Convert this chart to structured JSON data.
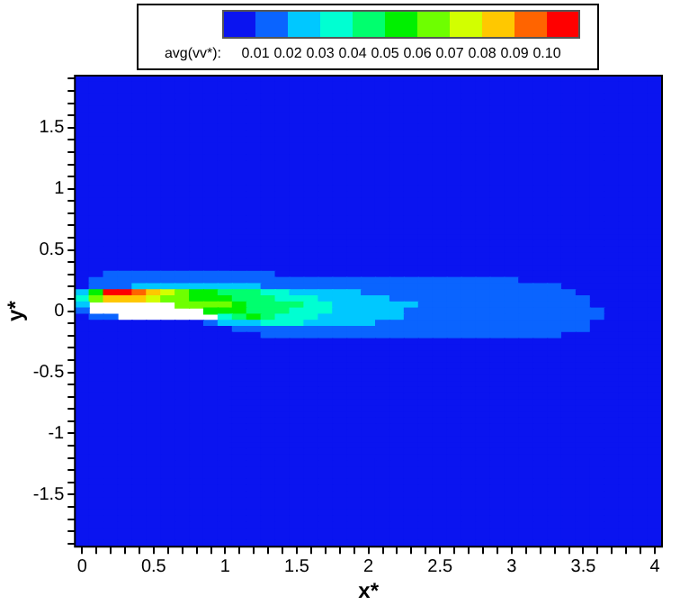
{
  "chart_data": {
    "type": "heatmap",
    "xlabel": "x*",
    "ylabel": "y*",
    "clabel": "avg(vv*):",
    "categories": [
      "0",
      null,
      null,
      null,
      null,
      "0.5",
      null,
      null,
      null,
      null,
      "1",
      null,
      null,
      null,
      null,
      "1.5",
      null,
      null,
      null,
      null,
      "2",
      null,
      null,
      null,
      null,
      "2.5",
      null,
      null,
      null,
      null,
      "3",
      null,
      null,
      null,
      null,
      "3.5",
      null,
      null,
      null,
      null,
      "4"
    ],
    "y_categories": [
      null,
      null,
      null,
      null,
      null,
      null,
      null,
      null,
      "1.5",
      null,
      null,
      null,
      null,
      null,
      null,
      null,
      null,
      null,
      "1",
      null,
      null,
      null,
      null,
      null,
      null,
      null,
      null,
      null,
      "0.5",
      null,
      null,
      null,
      null,
      null,
      null,
      null,
      null,
      null,
      "0",
      null,
      null,
      null,
      null,
      null,
      null,
      null,
      null,
      null,
      "-0.5",
      null,
      null,
      null,
      null,
      null,
      null,
      null,
      null,
      null,
      "-1",
      null,
      null,
      null,
      null,
      null,
      null,
      null,
      null,
      null,
      "-1.5",
      null,
      null,
      null,
      null,
      null,
      null,
      null,
      null
    ],
    "clim": [
      0,
      0.11
    ],
    "cticks": [
      0.01,
      0.02,
      0.03,
      0.04,
      0.05,
      0.06,
      0.07,
      0.08,
      0.09,
      {
        "value": 0.1,
        "label": "0.10"
      }
    ],
    "cells": [
      [
        0,
        0,
        0,
        0,
        0,
        0,
        0,
        0,
        0,
        0,
        0,
        0,
        0,
        0,
        0,
        0,
        0,
        0,
        0,
        0,
        0,
        0,
        0,
        0,
        0,
        0,
        0,
        0,
        0,
        0,
        0,
        0,
        0,
        0,
        0,
        0,
        0,
        0,
        0,
        0,
        0
      ],
      [
        0,
        0,
        0,
        0,
        0,
        0,
        0,
        0,
        0,
        0,
        0,
        0,
        0,
        0,
        0,
        0,
        0,
        0,
        0,
        0,
        0,
        0,
        0,
        0,
        0,
        0,
        0,
        0,
        0,
        0,
        0,
        0,
        0,
        0,
        0,
        0,
        0,
        0,
        0,
        0,
        0
      ],
      [
        0,
        0,
        0,
        0,
        0,
        0,
        0,
        0,
        0,
        0,
        0,
        0,
        0,
        0,
        0,
        0,
        0,
        0,
        0,
        0,
        0,
        0,
        0,
        0,
        0,
        0,
        0,
        0,
        0,
        0,
        0,
        0,
        0,
        0,
        0,
        0,
        0,
        0,
        0,
        0,
        0
      ],
      [
        0,
        0,
        0,
        0,
        0,
        0,
        0,
        0,
        0,
        0,
        0,
        0,
        0,
        0,
        0,
        0,
        0,
        0,
        0,
        0,
        0,
        0,
        0,
        0,
        0,
        0,
        0,
        0,
        0,
        0,
        0,
        0,
        0,
        0,
        0,
        0,
        0,
        0,
        0,
        0,
        0
      ],
      [
        0,
        0,
        0,
        0,
        0,
        0,
        0,
        0,
        0,
        0,
        0,
        0,
        0,
        0,
        0,
        0,
        0,
        0,
        0,
        0,
        0,
        0,
        0,
        0,
        0,
        0,
        0,
        0,
        0,
        0,
        0,
        0,
        0,
        0,
        0,
        0,
        0,
        0,
        0,
        0,
        0
      ],
      [
        0,
        0,
        0,
        0,
        0,
        0,
        0,
        0,
        0,
        0,
        0,
        0,
        0,
        0,
        0,
        0,
        0,
        0,
        0,
        0,
        0,
        0,
        0,
        0,
        0,
        0,
        0,
        0,
        0,
        0,
        0,
        0,
        0,
        0,
        0,
        0,
        0,
        0,
        0,
        0,
        0
      ],
      [
        0,
        0,
        0,
        0,
        0,
        0,
        0,
        0,
        0,
        0,
        0,
        0,
        0,
        0,
        0,
        0,
        0,
        0,
        0,
        0,
        0,
        0,
        0,
        0,
        0,
        0,
        0,
        0,
        0,
        0,
        0,
        0,
        0,
        0,
        0,
        0,
        0,
        0,
        0,
        0,
        0
      ],
      [
        0,
        0,
        0,
        0,
        0,
        0,
        0,
        0,
        0,
        0,
        0,
        0,
        0,
        0,
        0,
        0,
        0,
        0,
        0,
        0,
        0,
        0,
        0,
        0,
        0,
        0,
        0,
        0,
        0,
        0,
        0,
        0,
        0,
        0,
        0,
        0,
        0,
        0,
        0,
        0,
        0
      ],
      [
        0,
        0,
        0,
        0,
        0,
        0,
        0,
        0,
        0,
        0,
        0,
        0,
        0,
        0,
        0,
        0,
        0,
        0,
        0,
        0,
        0,
        0,
        0,
        0,
        0,
        0,
        0,
        0,
        0,
        0,
        0,
        0,
        0,
        0,
        0,
        0,
        0,
        0,
        0,
        0,
        0
      ],
      [
        0,
        0,
        0,
        0,
        0,
        0,
        0,
        0,
        0,
        0,
        0,
        0,
        0,
        0,
        0,
        0,
        0,
        0,
        0,
        0,
        0,
        0,
        0,
        0,
        0,
        0,
        0,
        0,
        0,
        0,
        0,
        0,
        0,
        0,
        0,
        0,
        0,
        0,
        0,
        0,
        0
      ],
      [
        0,
        0,
        0,
        0,
        0,
        0,
        0,
        0,
        0,
        0,
        0,
        0,
        0,
        0,
        0,
        0,
        0,
        0,
        0,
        0,
        0,
        0,
        0,
        0,
        0,
        0,
        0,
        0,
        0,
        0,
        0,
        0,
        0,
        0,
        0,
        0,
        0,
        0,
        0,
        0,
        0
      ],
      [
        0,
        0,
        0,
        0,
        0,
        0,
        0,
        0,
        0,
        0,
        0,
        0,
        0,
        0,
        0,
        0,
        0,
        0,
        0,
        0,
        0,
        0,
        0,
        0,
        0,
        0,
        0,
        0,
        0,
        0,
        0,
        0,
        0,
        0,
        0,
        0,
        0,
        0,
        0,
        0,
        0
      ],
      [
        0,
        0,
        0,
        0,
        0,
        0,
        0,
        0,
        0,
        0,
        0,
        0,
        0,
        0,
        0,
        0,
        0,
        0,
        0,
        0,
        0,
        0,
        0,
        0,
        0,
        0,
        0,
        0,
        0,
        0,
        0,
        0,
        0,
        0,
        0,
        0,
        0,
        0,
        0,
        0,
        0
      ],
      [
        0,
        0,
        0,
        0,
        0,
        0,
        0,
        0,
        0,
        0,
        0,
        0,
        0,
        0,
        0,
        0,
        0,
        0,
        0,
        0,
        0,
        0,
        0,
        0,
        0,
        0,
        0,
        0,
        0,
        0,
        0,
        0,
        0,
        0,
        0,
        0,
        0,
        0,
        0,
        0,
        0
      ],
      [
        0,
        0,
        0,
        0,
        0,
        0,
        0,
        0,
        0,
        0,
        0,
        0,
        0,
        0,
        0,
        0,
        0,
        0,
        0,
        0,
        0,
        0,
        0,
        0,
        0,
        0,
        0,
        0,
        0,
        0,
        0,
        0,
        0,
        0,
        0,
        0,
        0,
        0,
        0,
        0,
        0
      ],
      [
        0,
        0,
        0,
        0,
        0,
        0,
        0,
        0,
        0,
        0,
        0,
        0,
        0,
        0,
        0,
        0,
        0,
        0,
        0,
        0,
        0,
        0,
        0,
        0,
        0,
        0,
        0,
        0,
        0,
        0,
        0,
        0,
        0,
        0,
        0,
        0,
        0,
        0,
        0,
        0,
        0
      ],
      [
        0,
        0,
        0,
        0,
        0,
        0,
        0,
        0,
        0,
        0,
        0,
        0,
        0,
        0,
        0,
        0,
        0,
        0,
        0,
        0,
        0,
        0,
        0,
        0,
        0,
        0,
        0,
        0,
        0,
        0,
        0,
        0,
        0,
        0,
        0,
        0,
        0,
        0,
        0,
        0,
        0
      ],
      [
        0,
        0,
        0,
        0,
        0,
        0,
        0,
        0,
        0,
        0,
        0,
        0,
        0,
        0,
        0,
        0,
        0,
        0,
        0,
        0,
        0,
        0,
        0,
        0,
        0,
        0,
        0,
        0,
        0,
        0,
        0,
        0,
        0,
        0,
        0,
        0,
        0,
        0,
        0,
        0,
        0
      ],
      [
        0,
        0,
        0,
        0,
        0,
        0,
        0,
        0,
        0,
        0,
        0,
        0,
        0,
        0,
        0,
        0,
        0,
        0,
        0,
        0,
        0,
        0,
        0,
        0,
        0,
        0,
        0,
        0,
        0,
        0,
        0,
        0,
        0,
        0,
        0,
        0,
        0,
        0,
        0,
        0,
        0
      ],
      [
        0,
        0,
        0,
        0,
        0,
        0,
        0,
        0,
        0,
        0,
        0,
        0,
        0,
        0,
        0,
        0,
        0,
        0,
        0,
        0,
        0,
        0,
        0,
        0,
        0,
        0,
        0,
        0,
        0,
        0,
        0,
        0,
        0,
        0,
        0,
        0,
        0,
        0,
        0,
        0,
        0
      ],
      [
        0,
        0,
        0,
        0,
        0,
        0,
        0,
        0,
        0,
        0,
        0,
        0,
        0,
        0,
        0,
        0,
        0,
        0,
        0,
        0,
        0,
        0,
        0,
        0,
        0,
        0,
        0,
        0,
        0,
        0,
        0,
        0,
        0,
        0,
        0,
        0,
        0,
        0,
        0,
        0,
        0
      ],
      [
        0,
        0,
        0,
        0,
        0,
        0,
        0,
        0,
        0,
        0,
        0,
        0,
        0,
        0,
        0,
        0,
        0,
        0,
        0,
        0,
        0,
        0,
        0,
        0,
        0,
        0,
        0,
        0,
        0,
        0,
        0,
        0,
        0,
        0,
        0,
        0,
        0,
        0,
        0,
        0,
        0
      ],
      [
        0,
        0,
        0,
        0,
        0,
        0,
        0,
        0,
        0,
        0,
        0,
        0,
        0,
        0,
        0,
        0,
        0,
        0,
        0,
        0,
        0,
        0,
        0,
        0,
        0,
        0,
        0,
        0,
        0,
        0,
        0,
        0,
        0,
        0,
        0,
        0,
        0,
        0,
        0,
        0,
        0
      ],
      [
        0,
        0,
        0,
        0,
        0,
        0,
        0,
        0,
        0,
        0,
        0,
        0,
        0,
        0,
        0,
        0,
        0,
        0,
        0,
        0,
        0,
        0,
        0,
        0,
        0,
        0,
        0,
        0,
        0,
        0,
        0,
        0,
        0,
        0,
        0,
        0,
        0,
        0,
        0,
        0,
        0
      ],
      [
        0,
        0,
        0,
        0,
        0,
        0,
        0,
        0,
        0,
        0,
        0,
        0,
        0,
        0,
        0,
        0,
        0,
        0,
        0,
        0,
        0,
        0,
        0,
        0,
        0,
        0,
        0,
        0,
        0,
        0,
        0,
        0,
        0,
        0,
        0,
        0,
        0,
        0,
        0,
        0,
        0
      ],
      [
        0,
        0,
        0,
        0,
        0,
        0,
        0,
        0,
        0,
        0,
        0,
        0,
        0,
        0,
        0,
        0,
        0,
        0,
        0,
        0,
        0,
        0,
        0,
        0,
        0,
        0,
        0,
        0,
        0,
        0,
        0,
        0,
        0,
        0,
        0,
        0,
        0,
        0,
        0,
        0,
        0
      ],
      [
        0,
        0,
        0,
        0,
        0,
        0,
        0,
        0,
        0,
        0,
        0,
        0,
        0,
        0,
        0,
        0,
        0,
        0,
        0,
        0,
        0,
        0,
        0,
        0,
        0,
        0,
        0,
        0,
        0,
        0,
        0,
        0,
        0,
        0,
        0,
        0,
        0,
        0,
        0,
        0,
        0
      ],
      [
        0,
        0,
        0,
        0,
        0,
        0,
        0,
        0,
        0,
        0,
        0,
        0,
        0,
        0,
        0,
        0,
        0,
        0,
        0,
        0,
        0,
        0,
        0,
        0,
        0,
        0,
        0,
        0,
        0,
        0,
        0,
        0,
        0,
        0,
        0,
        0,
        0,
        0,
        0,
        0,
        0
      ],
      [
        0,
        0,
        0,
        0,
        0,
        0,
        0,
        0,
        0,
        0,
        0,
        0,
        0,
        0,
        0,
        0,
        0,
        0,
        0,
        0,
        0,
        0,
        0,
        0,
        0,
        0,
        0,
        0,
        0,
        0,
        0,
        0,
        0,
        0,
        0,
        0,
        0,
        0,
        0,
        0,
        0
      ],
      [
        0,
        0,
        0,
        0,
        0,
        0,
        0,
        0,
        0,
        0,
        0,
        0,
        0,
        0,
        0,
        0,
        0,
        0,
        0,
        0,
        0,
        0,
        0,
        0,
        0,
        0,
        0,
        0,
        0,
        0,
        0,
        0,
        0,
        0,
        0,
        0,
        0,
        0,
        0,
        0,
        0
      ],
      [
        0,
        0,
        0,
        0,
        0,
        0,
        0,
        0,
        0,
        0,
        0,
        0,
        0,
        0,
        0,
        0,
        0,
        0,
        0,
        0,
        0,
        0,
        0,
        0,
        0,
        0,
        0,
        0,
        0,
        0,
        0,
        0,
        0,
        0,
        0,
        0,
        0,
        0,
        0,
        0,
        0
      ],
      [
        0,
        0,
        0,
        0,
        0,
        0,
        0,
        0,
        0,
        0,
        0,
        0,
        0,
        0,
        0,
        0,
        0,
        0,
        0,
        0,
        0,
        0,
        0,
        0,
        0,
        0,
        0,
        0,
        0,
        0,
        0,
        0,
        0,
        0,
        0,
        0,
        0,
        0,
        0,
        0,
        0
      ],
      [
        0,
        0,
        0.015,
        0.015,
        0.015,
        0.015,
        0.015,
        0.015,
        0.015,
        0.015,
        0.015,
        0.015,
        0.015,
        0.015,
        0,
        0,
        0,
        0,
        0,
        0,
        0,
        0,
        0,
        0,
        0,
        0,
        0,
        0,
        0,
        0,
        0,
        0,
        0,
        0,
        0,
        0,
        0,
        0,
        0,
        0,
        0
      ],
      [
        0,
        0.015,
        0.015,
        0.015,
        0.015,
        0.015,
        0.015,
        0.015,
        0.015,
        0.015,
        0.015,
        0.015,
        0.015,
        0.015,
        0.015,
        0.015,
        0.015,
        0.015,
        0.015,
        0.015,
        0.015,
        0.015,
        0.015,
        0.015,
        0.015,
        0.015,
        0.015,
        0.015,
        0.015,
        0.015,
        0.015,
        0,
        0,
        0,
        0,
        0,
        0,
        0,
        0,
        0,
        0
      ],
      [
        0,
        0.015,
        0.015,
        0.015,
        0.025,
        0.025,
        0.025,
        0.025,
        0.025,
        0.025,
        0.025,
        0.025,
        0.025,
        0.015,
        0.015,
        0.015,
        0.015,
        0.015,
        0.015,
        0.015,
        0.015,
        0.015,
        0.015,
        0.015,
        0.015,
        0.015,
        0.015,
        0.015,
        0.015,
        0.015,
        0.015,
        0.015,
        0.015,
        0.015,
        0,
        0,
        0,
        0,
        0,
        0,
        0
      ],
      [
        0.025,
        0.055,
        0.105,
        0.105,
        0.095,
        0.085,
        0.075,
        0.065,
        0.055,
        0.055,
        0.045,
        0.045,
        0.045,
        0.035,
        0.035,
        0.025,
        0.025,
        0.025,
        0.025,
        0.025,
        0.015,
        0.015,
        0.015,
        0.015,
        0.015,
        0.015,
        0.015,
        0.015,
        0.015,
        0.015,
        0.015,
        0.015,
        0.015,
        0.015,
        0.015,
        0,
        0,
        0,
        0,
        0,
        0
      ],
      [
        0.035,
        0.065,
        0.085,
        0.085,
        0.085,
        0.075,
        0.065,
        0.065,
        0.055,
        0.055,
        0.055,
        0.045,
        0.045,
        0.045,
        0.035,
        0.035,
        0.035,
        0.025,
        0.025,
        0.025,
        0.025,
        0.025,
        0.015,
        0.015,
        0.015,
        0.015,
        0.015,
        0.015,
        0.015,
        0.015,
        0.015,
        0.015,
        0.015,
        0.015,
        0.015,
        0.015,
        0,
        0,
        0,
        0,
        0
      ],
      [
        0.025,
        null,
        null,
        null,
        null,
        null,
        null,
        0.065,
        0.065,
        0.065,
        0.065,
        0.055,
        0.045,
        0.045,
        0.045,
        0.045,
        0.035,
        0.035,
        0.025,
        0.025,
        0.025,
        0.025,
        0.025,
        0.025,
        0.015,
        0.015,
        0.015,
        0.015,
        0.015,
        0.015,
        0.015,
        0.015,
        0.015,
        0.015,
        0.015,
        0.015,
        0,
        0,
        0,
        0,
        0
      ],
      [
        0.015,
        null,
        null,
        null,
        null,
        null,
        null,
        null,
        null,
        0.055,
        0.055,
        0.055,
        0.045,
        0.045,
        0.045,
        0.035,
        0.035,
        0.035,
        0.025,
        0.025,
        0.025,
        0.025,
        0.025,
        0.015,
        0.015,
        0.015,
        0.015,
        0.015,
        0.015,
        0.015,
        0.015,
        0.015,
        0.015,
        0.015,
        0.015,
        0.015,
        0.015,
        0,
        0,
        0,
        0
      ],
      [
        0,
        0.015,
        0.015,
        null,
        null,
        null,
        null,
        null,
        null,
        null,
        0.035,
        0.045,
        0.055,
        0.045,
        0.035,
        0.035,
        0.035,
        0.025,
        0.025,
        0.025,
        0.025,
        0.025,
        0.025,
        0.015,
        0.015,
        0.015,
        0.015,
        0.015,
        0.015,
        0.015,
        0.015,
        0.015,
        0.015,
        0.015,
        0.015,
        0.015,
        0.015,
        0,
        0,
        0,
        0
      ],
      [
        0,
        0,
        0,
        0,
        0,
        0,
        0,
        0,
        0,
        0.015,
        0.025,
        0.025,
        0.025,
        0.035,
        0.035,
        0.035,
        0.025,
        0.025,
        0.025,
        0.025,
        0.025,
        0.015,
        0.015,
        0.015,
        0.015,
        0.015,
        0.015,
        0.015,
        0.015,
        0.015,
        0.015,
        0.015,
        0.015,
        0.015,
        0.015,
        0.015,
        0,
        0,
        0,
        0,
        0
      ],
      [
        0,
        0,
        0,
        0,
        0,
        0,
        0,
        0,
        0,
        0,
        0,
        0.015,
        0.015,
        0.015,
        0.015,
        0.015,
        0.015,
        0.015,
        0.015,
        0.015,
        0.015,
        0.015,
        0.015,
        0.015,
        0.015,
        0.015,
        0.015,
        0.015,
        0.015,
        0.015,
        0.015,
        0.015,
        0.015,
        0.015,
        0.015,
        0.015,
        0,
        0,
        0,
        0,
        0
      ],
      [
        0,
        0,
        0,
        0,
        0,
        0,
        0,
        0,
        0,
        0,
        0,
        0,
        0,
        0.015,
        0.015,
        0.015,
        0.015,
        0.015,
        0.015,
        0.015,
        0.015,
        0.015,
        0.015,
        0.015,
        0.015,
        0.015,
        0.015,
        0.015,
        0.015,
        0.015,
        0.015,
        0.015,
        0.015,
        0.015,
        0,
        0,
        0,
        0,
        0,
        0,
        0
      ],
      [
        0,
        0,
        0,
        0,
        0,
        0,
        0,
        0,
        0,
        0,
        0,
        0,
        0,
        0,
        0,
        0,
        0,
        0,
        0,
        0,
        0,
        0,
        0,
        0,
        0,
        0,
        0,
        0,
        0,
        0,
        0,
        0,
        0,
        0,
        0,
        0,
        0,
        0,
        0,
        0,
        0
      ],
      [
        0,
        0,
        0,
        0,
        0,
        0,
        0,
        0,
        0,
        0,
        0,
        0,
        0,
        0,
        0,
        0,
        0,
        0,
        0,
        0,
        0,
        0,
        0,
        0,
        0,
        0,
        0,
        0,
        0,
        0,
        0,
        0,
        0,
        0,
        0,
        0,
        0,
        0,
        0,
        0,
        0
      ],
      [
        0,
        0,
        0,
        0,
        0,
        0,
        0,
        0,
        0,
        0,
        0,
        0,
        0,
        0,
        0,
        0,
        0,
        0,
        0,
        0,
        0,
        0,
        0,
        0,
        0,
        0,
        0,
        0,
        0,
        0,
        0,
        0,
        0,
        0,
        0,
        0,
        0,
        0,
        0,
        0,
        0
      ],
      [
        0,
        0,
        0,
        0,
        0,
        0,
        0,
        0,
        0,
        0,
        0,
        0,
        0,
        0,
        0,
        0,
        0,
        0,
        0,
        0,
        0,
        0,
        0,
        0,
        0,
        0,
        0,
        0,
        0,
        0,
        0,
        0,
        0,
        0,
        0,
        0,
        0,
        0,
        0,
        0,
        0
      ],
      [
        0,
        0,
        0,
        0,
        0,
        0,
        0,
        0,
        0,
        0,
        0,
        0,
        0,
        0,
        0,
        0,
        0,
        0,
        0,
        0,
        0,
        0,
        0,
        0,
        0,
        0,
        0,
        0,
        0,
        0,
        0,
        0,
        0,
        0,
        0,
        0,
        0,
        0,
        0,
        0,
        0
      ],
      [
        0,
        0,
        0,
        0,
        0,
        0,
        0,
        0,
        0,
        0,
        0,
        0,
        0,
        0,
        0,
        0,
        0,
        0,
        0,
        0,
        0,
        0,
        0,
        0,
        0,
        0,
        0,
        0,
        0,
        0,
        0,
        0,
        0,
        0,
        0,
        0,
        0,
        0,
        0,
        0,
        0
      ],
      [
        0,
        0,
        0,
        0,
        0,
        0,
        0,
        0,
        0,
        0,
        0,
        0,
        0,
        0,
        0,
        0,
        0,
        0,
        0,
        0,
        0,
        0,
        0,
        0,
        0,
        0,
        0,
        0,
        0,
        0,
        0,
        0,
        0,
        0,
        0,
        0,
        0,
        0,
        0,
        0,
        0
      ],
      [
        0,
        0,
        0,
        0,
        0,
        0,
        0,
        0,
        0,
        0,
        0,
        0,
        0,
        0,
        0,
        0,
        0,
        0,
        0,
        0,
        0,
        0,
        0,
        0,
        0,
        0,
        0,
        0,
        0,
        0,
        0,
        0,
        0,
        0,
        0,
        0,
        0,
        0,
        0,
        0,
        0
      ],
      [
        0,
        0,
        0,
        0,
        0,
        0,
        0,
        0,
        0,
        0,
        0,
        0,
        0,
        0,
        0,
        0,
        0,
        0,
        0,
        0,
        0,
        0,
        0,
        0,
        0,
        0,
        0,
        0,
        0,
        0,
        0,
        0,
        0,
        0,
        0,
        0,
        0,
        0,
        0,
        0,
        0
      ],
      [
        0,
        0,
        0,
        0,
        0,
        0,
        0,
        0,
        0,
        0,
        0,
        0,
        0,
        0,
        0,
        0,
        0,
        0,
        0,
        0,
        0,
        0,
        0,
        0,
        0,
        0,
        0,
        0,
        0,
        0,
        0,
        0,
        0,
        0,
        0,
        0,
        0,
        0,
        0,
        0,
        0
      ],
      [
        0,
        0,
        0,
        0,
        0,
        0,
        0,
        0,
        0,
        0,
        0,
        0,
        0,
        0,
        0,
        0,
        0,
        0,
        0,
        0,
        0,
        0,
        0,
        0,
        0,
        0,
        0,
        0,
        0,
        0,
        0,
        0,
        0,
        0,
        0,
        0,
        0,
        0,
        0,
        0,
        0
      ],
      [
        0,
        0,
        0,
        0,
        0,
        0,
        0,
        0,
        0,
        0,
        0,
        0,
        0,
        0,
        0,
        0,
        0,
        0,
        0,
        0,
        0,
        0,
        0,
        0,
        0,
        0,
        0,
        0,
        0,
        0,
        0,
        0,
        0,
        0,
        0,
        0,
        0,
        0,
        0,
        0,
        0
      ],
      [
        0,
        0,
        0,
        0,
        0,
        0,
        0,
        0,
        0,
        0,
        0,
        0,
        0,
        0,
        0,
        0,
        0,
        0,
        0,
        0,
        0,
        0,
        0,
        0,
        0,
        0,
        0,
        0,
        0,
        0,
        0,
        0,
        0,
        0,
        0,
        0,
        0,
        0,
        0,
        0,
        0
      ],
      [
        0,
        0,
        0,
        0,
        0,
        0,
        0,
        0,
        0,
        0,
        0,
        0,
        0,
        0,
        0,
        0,
        0,
        0,
        0,
        0,
        0,
        0,
        0,
        0,
        0,
        0,
        0,
        0,
        0,
        0,
        0,
        0,
        0,
        0,
        0,
        0,
        0,
        0,
        0,
        0,
        0
      ],
      [
        0,
        0,
        0,
        0,
        0,
        0,
        0,
        0,
        0,
        0,
        0,
        0,
        0,
        0,
        0,
        0,
        0,
        0,
        0,
        0,
        0,
        0,
        0,
        0,
        0,
        0,
        0,
        0,
        0,
        0,
        0,
        0,
        0,
        0,
        0,
        0,
        0,
        0,
        0,
        0,
        0
      ],
      [
        0,
        0,
        0,
        0,
        0,
        0,
        0,
        0,
        0,
        0,
        0,
        0,
        0,
        0,
        0,
        0,
        0,
        0,
        0,
        0,
        0,
        0,
        0,
        0,
        0,
        0,
        0,
        0,
        0,
        0,
        0,
        0,
        0,
        0,
        0,
        0,
        0,
        0,
        0,
        0,
        0
      ],
      [
        0,
        0,
        0,
        0,
        0,
        0,
        0,
        0,
        0,
        0,
        0,
        0,
        0,
        0,
        0,
        0,
        0,
        0,
        0,
        0,
        0,
        0,
        0,
        0,
        0,
        0,
        0,
        0,
        0,
        0,
        0,
        0,
        0,
        0,
        0,
        0,
        0,
        0,
        0,
        0,
        0
      ],
      [
        0,
        0,
        0,
        0,
        0,
        0,
        0,
        0,
        0,
        0,
        0,
        0,
        0,
        0,
        0,
        0,
        0,
        0,
        0,
        0,
        0,
        0,
        0,
        0,
        0,
        0,
        0,
        0,
        0,
        0,
        0,
        0,
        0,
        0,
        0,
        0,
        0,
        0,
        0,
        0,
        0
      ],
      [
        0,
        0,
        0,
        0,
        0,
        0,
        0,
        0,
        0,
        0,
        0,
        0,
        0,
        0,
        0,
        0,
        0,
        0,
        0,
        0,
        0,
        0,
        0,
        0,
        0,
        0,
        0,
        0,
        0,
        0,
        0,
        0,
        0,
        0,
        0,
        0,
        0,
        0,
        0,
        0,
        0
      ],
      [
        0,
        0,
        0,
        0,
        0,
        0,
        0,
        0,
        0,
        0,
        0,
        0,
        0,
        0,
        0,
        0,
        0,
        0,
        0,
        0,
        0,
        0,
        0,
        0,
        0,
        0,
        0,
        0,
        0,
        0,
        0,
        0,
        0,
        0,
        0,
        0,
        0,
        0,
        0,
        0,
        0
      ],
      [
        0,
        0,
        0,
        0,
        0,
        0,
        0,
        0,
        0,
        0,
        0,
        0,
        0,
        0,
        0,
        0,
        0,
        0,
        0,
        0,
        0,
        0,
        0,
        0,
        0,
        0,
        0,
        0,
        0,
        0,
        0,
        0,
        0,
        0,
        0,
        0,
        0,
        0,
        0,
        0,
        0
      ],
      [
        0,
        0,
        0,
        0,
        0,
        0,
        0,
        0,
        0,
        0,
        0,
        0,
        0,
        0,
        0,
        0,
        0,
        0,
        0,
        0,
        0,
        0,
        0,
        0,
        0,
        0,
        0,
        0,
        0,
        0,
        0,
        0,
        0,
        0,
        0,
        0,
        0,
        0,
        0,
        0,
        0
      ],
      [
        0,
        0,
        0,
        0,
        0,
        0,
        0,
        0,
        0,
        0,
        0,
        0,
        0,
        0,
        0,
        0,
        0,
        0,
        0,
        0,
        0,
        0,
        0,
        0,
        0,
        0,
        0,
        0,
        0,
        0,
        0,
        0,
        0,
        0,
        0,
        0,
        0,
        0,
        0,
        0,
        0
      ],
      [
        0,
        0,
        0,
        0,
        0,
        0,
        0,
        0,
        0,
        0,
        0,
        0,
        0,
        0,
        0,
        0,
        0,
        0,
        0,
        0,
        0,
        0,
        0,
        0,
        0,
        0,
        0,
        0,
        0,
        0,
        0,
        0,
        0,
        0,
        0,
        0,
        0,
        0,
        0,
        0,
        0
      ],
      [
        0,
        0,
        0,
        0,
        0,
        0,
        0,
        0,
        0,
        0,
        0,
        0,
        0,
        0,
        0,
        0,
        0,
        0,
        0,
        0,
        0,
        0,
        0,
        0,
        0,
        0,
        0,
        0,
        0,
        0,
        0,
        0,
        0,
        0,
        0,
        0,
        0,
        0,
        0,
        0,
        0
      ],
      [
        0,
        0,
        0,
        0,
        0,
        0,
        0,
        0,
        0,
        0,
        0,
        0,
        0,
        0,
        0,
        0,
        0,
        0,
        0,
        0,
        0,
        0,
        0,
        0,
        0,
        0,
        0,
        0,
        0,
        0,
        0,
        0,
        0,
        0,
        0,
        0,
        0,
        0,
        0,
        0,
        0
      ],
      [
        0,
        0,
        0,
        0,
        0,
        0,
        0,
        0,
        0,
        0,
        0,
        0,
        0,
        0,
        0,
        0,
        0,
        0,
        0,
        0,
        0,
        0,
        0,
        0,
        0,
        0,
        0,
        0,
        0,
        0,
        0,
        0,
        0,
        0,
        0,
        0,
        0,
        0,
        0,
        0,
        0
      ],
      [
        0,
        0,
        0,
        0,
        0,
        0,
        0,
        0,
        0,
        0,
        0,
        0,
        0,
        0,
        0,
        0,
        0,
        0,
        0,
        0,
        0,
        0,
        0,
        0,
        0,
        0,
        0,
        0,
        0,
        0,
        0,
        0,
        0,
        0,
        0,
        0,
        0,
        0,
        0,
        0,
        0
      ],
      [
        0,
        0,
        0,
        0,
        0,
        0,
        0,
        0,
        0,
        0,
        0,
        0,
        0,
        0,
        0,
        0,
        0,
        0,
        0,
        0,
        0,
        0,
        0,
        0,
        0,
        0,
        0,
        0,
        0,
        0,
        0,
        0,
        0,
        0,
        0,
        0,
        0,
        0,
        0,
        0,
        0
      ],
      [
        0,
        0,
        0,
        0,
        0,
        0,
        0,
        0,
        0,
        0,
        0,
        0,
        0,
        0,
        0,
        0,
        0,
        0,
        0,
        0,
        0,
        0,
        0,
        0,
        0,
        0,
        0,
        0,
        0,
        0,
        0,
        0,
        0,
        0,
        0,
        0,
        0,
        0,
        0,
        0,
        0
      ],
      [
        0,
        0,
        0,
        0,
        0,
        0,
        0,
        0,
        0,
        0,
        0,
        0,
        0,
        0,
        0,
        0,
        0,
        0,
        0,
        0,
        0,
        0,
        0,
        0,
        0,
        0,
        0,
        0,
        0,
        0,
        0,
        0,
        0,
        0,
        0,
        0,
        0,
        0,
        0,
        0,
        0
      ],
      [
        0,
        0,
        0,
        0,
        0,
        0,
        0,
        0,
        0,
        0,
        0,
        0,
        0,
        0,
        0,
        0,
        0,
        0,
        0,
        0,
        0,
        0,
        0,
        0,
        0,
        0,
        0,
        0,
        0,
        0,
        0,
        0,
        0,
        0,
        0,
        0,
        0,
        0,
        0,
        0,
        0
      ],
      [
        0,
        0,
        0,
        0,
        0,
        0,
        0,
        0,
        0,
        0,
        0,
        0,
        0,
        0,
        0,
        0,
        0,
        0,
        0,
        0,
        0,
        0,
        0,
        0,
        0,
        0,
        0,
        0,
        0,
        0,
        0,
        0,
        0,
        0,
        0,
        0,
        0,
        0,
        0,
        0,
        0
      ],
      [
        0,
        0,
        0,
        0,
        0,
        0,
        0,
        0,
        0,
        0,
        0,
        0,
        0,
        0,
        0,
        0,
        0,
        0,
        0,
        0,
        0,
        0,
        0,
        0,
        0,
        0,
        0,
        0,
        0,
        0,
        0,
        0,
        0,
        0,
        0,
        0,
        0,
        0,
        0,
        0,
        0
      ]
    ]
  }
}
